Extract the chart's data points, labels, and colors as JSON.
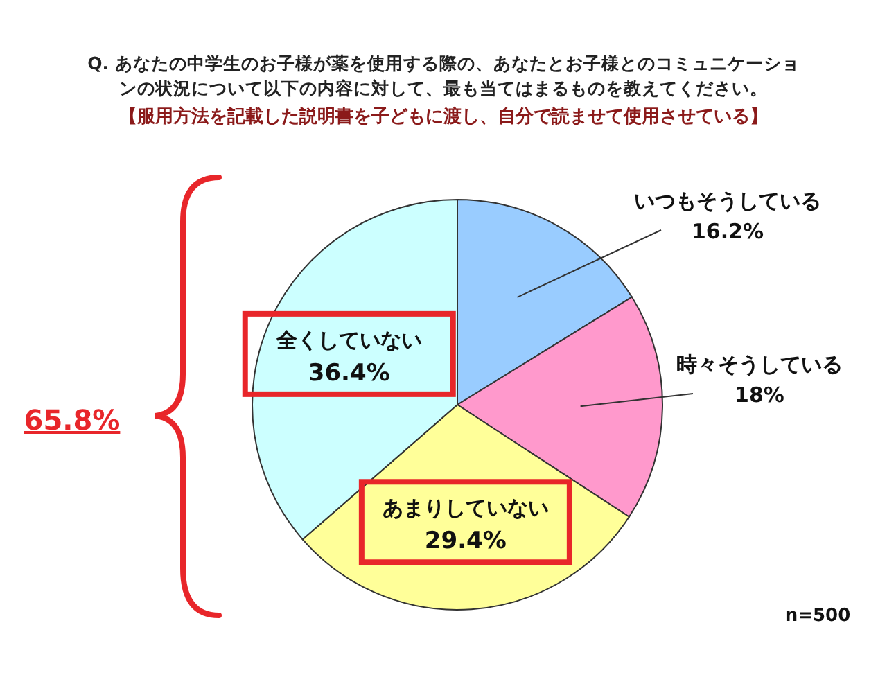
{
  "chart_data": {
    "type": "pie",
    "title": "Q. あなたの中学生のお子様が薬を使用する際の、あなたとお子様とのコミュニケーションの状況について以下の内容に対して、最も当てはまるものを教えてください。",
    "subtitle": "【服用方法を記載した説明書を子どもに渡し、自分で読ませて使用させている】",
    "categories": [
      "いつもそうしている",
      "時々そうしている",
      "あまりしていない",
      "全くしていない"
    ],
    "values": [
      16.2,
      18,
      29.4,
      36.4
    ],
    "colors": [
      "#99ccff",
      "#ff99cc",
      "#ffff99",
      "#ccffff"
    ],
    "value_labels": [
      "16.2%",
      "18%",
      "29.4%",
      "36.4%"
    ],
    "annotations": [
      "65.8%",
      "n=500"
    ]
  }
}
